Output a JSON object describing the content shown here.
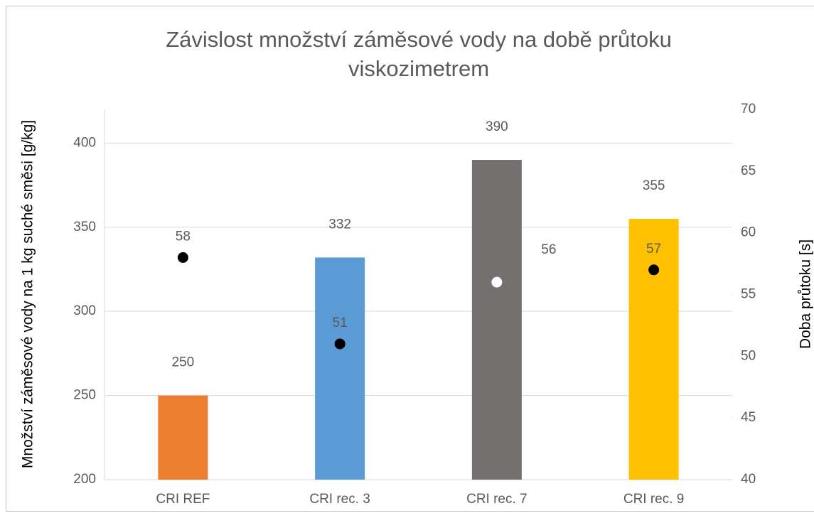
{
  "chart_data": {
    "type": "bar",
    "title": [
      "Závislost množství záměsové vody na době průtoku",
      "viskozimetrem"
    ],
    "y_label": "Množství záměsové vody  na 1 kg suché směsi [g/kg]",
    "y2_label": "Doba průtoku [s]",
    "categories": [
      "CRI REF",
      "CRI rec. 3",
      "CRI rec. 7",
      "CRI rec. 9"
    ],
    "series": [
      {
        "type": "bar",
        "values": [
          250,
          332,
          390,
          355
        ],
        "colors": [
          "#ED7D31",
          "#5B9BD5",
          "#73706F",
          "#FFC000"
        ]
      },
      {
        "type": "scatter",
        "axis": "y2",
        "values": [
          58,
          51,
          56,
          57
        ],
        "colors": [
          "#000000",
          "#000000",
          "#FFFFFF",
          "#000000"
        ]
      }
    ],
    "ylim": [
      200,
      420
    ],
    "yticks": [
      200,
      250,
      300,
      350,
      400
    ],
    "y2lim": [
      40,
      70
    ],
    "y2ticks": [
      40,
      45,
      50,
      55,
      60,
      65,
      70
    ],
    "grid": true
  }
}
